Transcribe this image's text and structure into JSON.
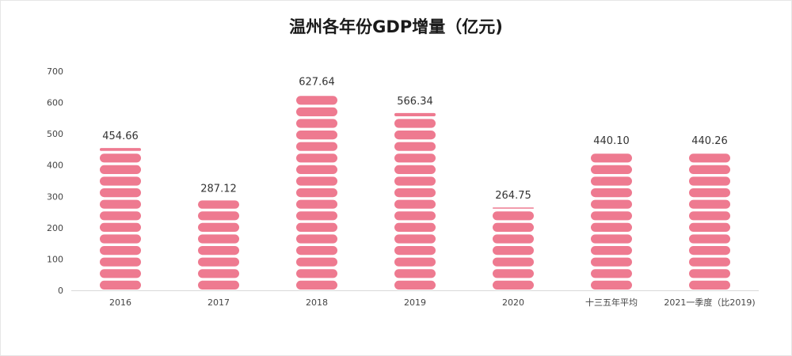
{
  "chart_data": {
    "type": "bar",
    "title": "温州各年份GDP增量（亿元)",
    "xlabel": "",
    "ylabel": "",
    "categories": [
      "2016",
      "2017",
      "2018",
      "2019",
      "2020",
      "十三五年平均",
      "2021一季度（比2019)"
    ],
    "values": [
      454.66,
      287.12,
      627.64,
      566.34,
      264.75,
      440.1,
      440.26
    ],
    "value_labels": [
      "454.66",
      "287.12",
      "627.64",
      "566.34",
      "264.75",
      "440.10",
      "440.26"
    ],
    "ylim": [
      0,
      700
    ],
    "yticks": [
      0,
      100,
      200,
      300,
      400,
      500,
      600,
      700
    ],
    "grid": false,
    "legend": "none",
    "bar_color": "#ee7a90",
    "bar_style": "stacked pill segments"
  }
}
